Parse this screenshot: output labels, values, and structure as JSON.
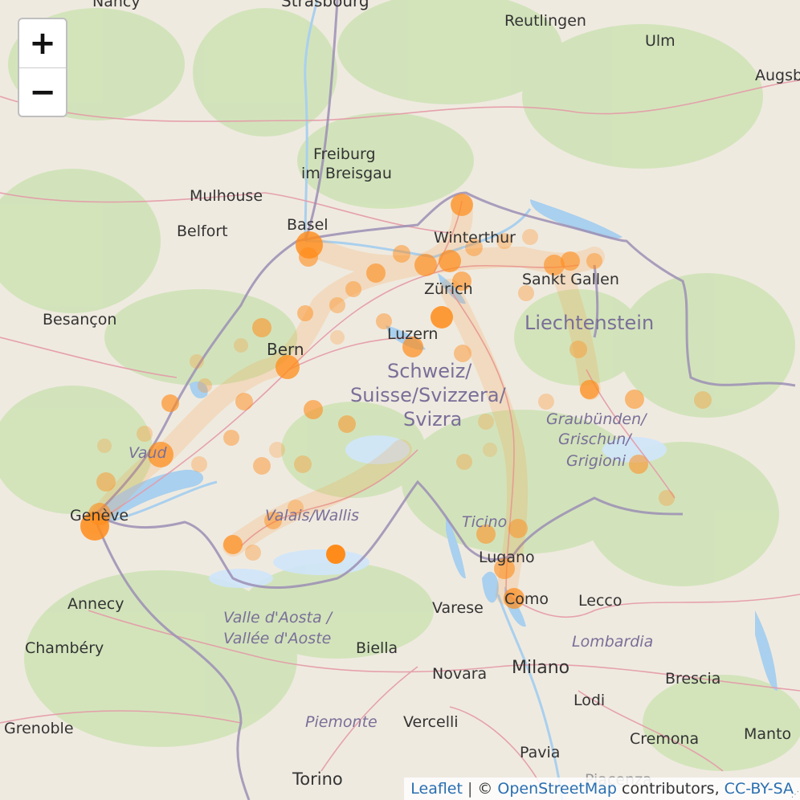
{
  "map": {
    "zoom_in_label": "+",
    "zoom_out_label": "−",
    "attribution": {
      "leaflet": "Leaflet",
      "separator": "|",
      "copyright": "©",
      "osm": "OpenStreetMap",
      "contributors": "contributors,",
      "license": "CC-BY-SA"
    },
    "colors": {
      "land": "#efeae0",
      "forest": "#cfe3b7",
      "water": "#a9d0ee",
      "border": "#9c8fb5",
      "road": "#e49aa8",
      "marker": "#ff8c1a"
    },
    "labels": {
      "nancy": "Nancy",
      "strasbourg": "Strasbourg",
      "reutlingen": "Reutlingen",
      "ulm": "Ulm",
      "augsburg": "Augsb",
      "freiburg1": "Freiburg",
      "freiburg2": "im Breisgau",
      "mulhouse": "Mulhouse",
      "belfort": "Belfort",
      "basel": "Basel",
      "winterthur": "Winterthur",
      "zurich": "Zürich",
      "sanktgallen": "Sankt Gallen",
      "liechtenstein": "Liechtenstein",
      "besancon": "Besançon",
      "bern": "Bern",
      "luzern": "Luzern",
      "schweiz1": "Schweiz/",
      "schweiz2": "Suisse/Svizzera/",
      "schweiz3": "Svizra",
      "graub1": "Graubünden/",
      "graub2": "Grischun/",
      "graub3": "Grigioni",
      "vaud": "Vaud",
      "geneve": "Genève",
      "valais": "Valais/Wallis",
      "ticino": "Ticino",
      "lugano": "Lugano",
      "annecy": "Annecy",
      "como": "Como",
      "lecco": "Lecco",
      "varese": "Varese",
      "aosta1": "Valle d'Aosta /",
      "aosta2": "Vallée d'Aoste",
      "chambery": "Chambéry",
      "biella": "Biella",
      "lombardia": "Lombardia",
      "novara": "Novara",
      "milano": "Milano",
      "brescia": "Brescia",
      "lodi": "Lodi",
      "grenoble": "Grenoble",
      "piemonte": "Piemonte",
      "vercelli": "Vercelli",
      "cremona": "Cremona",
      "mantova": "Manto",
      "pavia": "Pavia",
      "torino": "Torino",
      "piacenza": "Piacenza"
    }
  }
}
